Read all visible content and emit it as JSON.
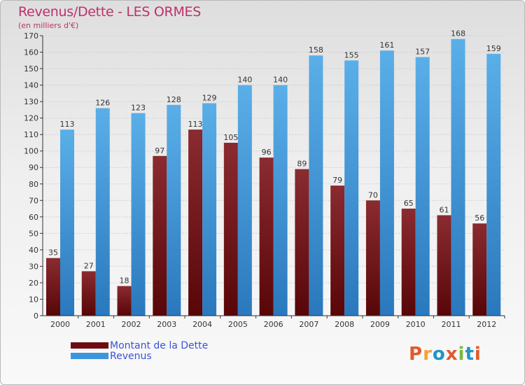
{
  "title": "Revenus/Dette - LES ORMES",
  "subtitle": "(en milliers d'€)",
  "legend": [
    {
      "label": "Montant de la Dette",
      "color": "#6e0c12"
    },
    {
      "label": "Revenus",
      "color": "#3d96dc"
    }
  ],
  "logo": {
    "text": "Proxiti",
    "colors": [
      "#e3592e",
      "#f1a33b",
      "#1e96c8",
      "#e3592e",
      "#7cb83b",
      "#1e96c8",
      "#e3592e"
    ]
  },
  "colors": {
    "debt_top": "#8a2b30",
    "debt_bottom": "#580608",
    "revenue_top": "#5aafe8",
    "revenue_bottom": "#2a78bd",
    "axis": "#333333",
    "grid": "#cfcfcf"
  },
  "chart_data": {
    "type": "bar",
    "categories": [
      "2000",
      "2001",
      "2002",
      "2003",
      "2004",
      "2005",
      "2006",
      "2007",
      "2008",
      "2009",
      "2010",
      "2011",
      "2012"
    ],
    "series": [
      {
        "name": "Montant de la Dette",
        "values": [
          35,
          27,
          18,
          97,
          113,
          105,
          96,
          89,
          79,
          70,
          65,
          61,
          56
        ]
      },
      {
        "name": "Revenus",
        "values": [
          113,
          126,
          123,
          128,
          129,
          140,
          140,
          158,
          155,
          161,
          157,
          168,
          159
        ]
      }
    ],
    "ylim": [
      0,
      170
    ],
    "ytick_step": 10,
    "grid": true,
    "legend_position": "bottom-left"
  }
}
